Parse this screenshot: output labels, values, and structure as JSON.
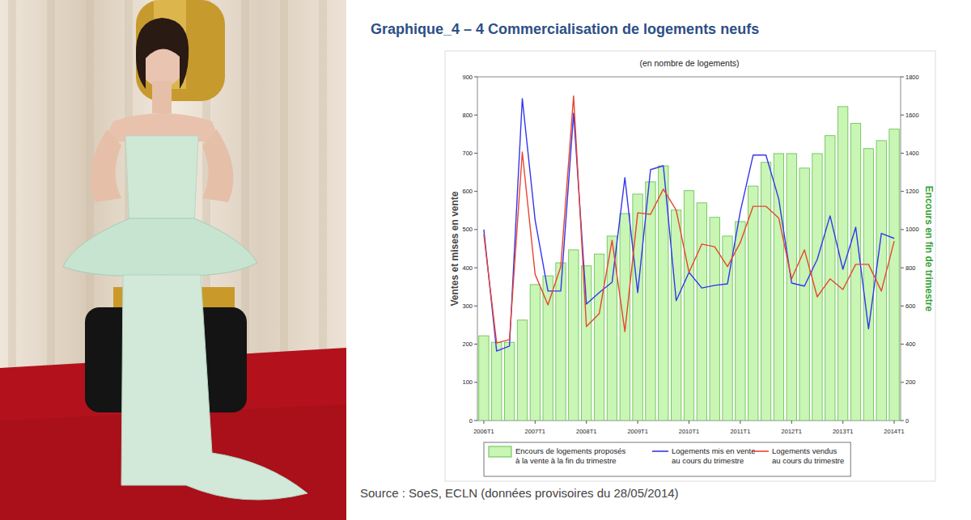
{
  "chart_data": {
    "type": "bar",
    "title": "Graphique_4 – 4 Commercialisation de logements neufs",
    "subtitle": "(en nombre de logements)",
    "source": "Source : SoeS, ECLN (données provisoires du 28/05/2014)",
    "y_label": "Ventes et mises en vente",
    "y2_label": "Encours en fin de trimestre",
    "categories": [
      "2006T1",
      null,
      null,
      null,
      "2007T1",
      null,
      null,
      null,
      "2008T1",
      null,
      null,
      null,
      "2009T1",
      null,
      null,
      null,
      "2010T1",
      null,
      null,
      null,
      "2011T1",
      null,
      null,
      null,
      "2012T1",
      null,
      null,
      null,
      "2013T1",
      null,
      null,
      null,
      "2014T1"
    ],
    "series": [
      {
        "name": "Encours de logements proposés à la vente à la fin du trimestre",
        "type": "bar",
        "axis": "y2",
        "color": "#c9f5b5",
        "values": [
          444,
          410,
          410,
          526,
          712,
          758,
          826,
          894,
          810,
          872,
          966,
          1084,
          1186,
          1250,
          1334,
          1102,
          1204,
          1140,
          1064,
          966,
          1042,
          1228,
          1352,
          1398,
          1398,
          1322,
          1398,
          1492,
          1644,
          1556,
          1424,
          1466,
          1526
        ]
      },
      {
        "name": "Logements mis en vente au cours du trimestre",
        "type": "line",
        "color": "#3535ee",
        "values": [
          500,
          182,
          195,
          843,
          525,
          339,
          339,
          805,
          305,
          335,
          362,
          636,
          335,
          657,
          667,
          314,
          388,
          347,
          354,
          358,
          547,
          695,
          695,
          580,
          360,
          352,
          422,
          536,
          396,
          506,
          240,
          490,
          477
        ]
      },
      {
        "name": "Logements vendus au cours du trimestre",
        "type": "line",
        "color": "#e8452f",
        "values": [
          487,
          203,
          212,
          703,
          383,
          303,
          403,
          850,
          246,
          280,
          472,
          233,
          544,
          540,
          606,
          551,
          388,
          462,
          455,
          403,
          466,
          561,
          561,
          530,
          371,
          447,
          324,
          371,
          343,
          409,
          409,
          339,
          470
        ]
      }
    ],
    "ylim": [
      0,
      900
    ],
    "yticks": [
      0,
      100,
      200,
      300,
      400,
      500,
      600,
      700,
      800,
      900
    ],
    "y2lim": [
      0,
      1800
    ],
    "y2ticks": [
      0,
      200,
      400,
      600,
      800,
      1000,
      1200,
      1400,
      1600,
      1800
    ],
    "grid": false,
    "legend": "bottom"
  }
}
